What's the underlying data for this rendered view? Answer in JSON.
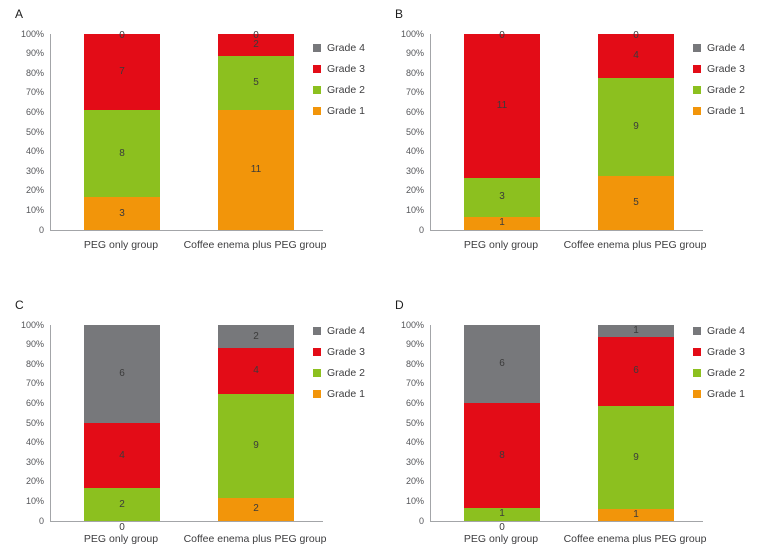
{
  "style": {
    "background": "#ffffff",
    "axis_color": "#a3a5a8",
    "tick_text_color": "#55565a",
    "value_text_color": "#3b3b3b",
    "grade_colors": {
      "Grade 1": "#f2950a",
      "Grade 2": "#8cc01f",
      "Grade 3": "#e30c17",
      "Grade 4": "#77787b"
    }
  },
  "legend": {
    "position": "right",
    "items": [
      "Grade 4",
      "Grade 3",
      "Grade 2",
      "Grade 1"
    ]
  },
  "y_axis": {
    "ticks": [
      "100%",
      "90%",
      "80%",
      "70%",
      "60%",
      "50%",
      "40%",
      "30%",
      "20%",
      "10%",
      "0"
    ]
  },
  "chart_data": [
    {
      "panel": "A",
      "type": "bar",
      "stacked": true,
      "normalized": "percent_of_total",
      "categories": [
        "PEG only group",
        "Coffee enema plus PEG group"
      ],
      "series": [
        {
          "name": "Grade 1",
          "color": "#f2950a",
          "values": [
            3,
            11
          ]
        },
        {
          "name": "Grade 2",
          "color": "#8cc01f",
          "values": [
            8,
            5
          ]
        },
        {
          "name": "Grade 3",
          "color": "#e30c17",
          "values": [
            7,
            2
          ]
        },
        {
          "name": "Grade 4",
          "color": "#77787b",
          "values": [
            0,
            0
          ]
        }
      ],
      "y_ticks": [
        "100%",
        "90%",
        "80%",
        "70%",
        "60%",
        "50%",
        "40%",
        "30%",
        "20%",
        "10%",
        "0"
      ],
      "ylim": [
        0,
        100
      ],
      "legend": [
        "Grade 4",
        "Grade 3",
        "Grade 2",
        "Grade 1"
      ],
      "legend_position": "right",
      "grid": false
    },
    {
      "panel": "B",
      "type": "bar",
      "stacked": true,
      "normalized": "percent_of_total",
      "categories": [
        "PEG only group",
        "Coffee enema plus PEG group"
      ],
      "series": [
        {
          "name": "Grade 1",
          "color": "#f2950a",
          "values": [
            1,
            5
          ]
        },
        {
          "name": "Grade 2",
          "color": "#8cc01f",
          "values": [
            3,
            9
          ]
        },
        {
          "name": "Grade 3",
          "color": "#e30c17",
          "values": [
            11,
            4
          ]
        },
        {
          "name": "Grade 4",
          "color": "#77787b",
          "values": [
            0,
            0
          ]
        }
      ],
      "y_ticks": [
        "100%",
        "90%",
        "80%",
        "70%",
        "60%",
        "50%",
        "40%",
        "30%",
        "20%",
        "10%",
        "0"
      ],
      "ylim": [
        0,
        100
      ],
      "legend": [
        "Grade 4",
        "Grade 3",
        "Grade 2",
        "Grade 1"
      ],
      "legend_position": "right",
      "grid": false
    },
    {
      "panel": "C",
      "type": "bar",
      "stacked": true,
      "normalized": "percent_of_total",
      "categories": [
        "PEG only group",
        "Coffee enema plus PEG group"
      ],
      "series": [
        {
          "name": "Grade 1",
          "color": "#f2950a",
          "values": [
            0,
            2
          ]
        },
        {
          "name": "Grade 2",
          "color": "#8cc01f",
          "values": [
            2,
            9
          ]
        },
        {
          "name": "Grade 3",
          "color": "#e30c17",
          "values": [
            4,
            4
          ]
        },
        {
          "name": "Grade 4",
          "color": "#77787b",
          "values": [
            6,
            2
          ]
        }
      ],
      "y_ticks": [
        "100%",
        "90%",
        "80%",
        "70%",
        "60%",
        "50%",
        "40%",
        "30%",
        "20%",
        "10%",
        "0"
      ],
      "ylim": [
        0,
        100
      ],
      "legend": [
        "Grade 4",
        "Grade 3",
        "Grade 2",
        "Grade 1"
      ],
      "legend_position": "right",
      "grid": false
    },
    {
      "panel": "D",
      "type": "bar",
      "stacked": true,
      "normalized": "percent_of_total",
      "categories": [
        "PEG only group",
        "Coffee enema plus PEG group"
      ],
      "series": [
        {
          "name": "Grade 1",
          "color": "#f2950a",
          "values": [
            0,
            1
          ]
        },
        {
          "name": "Grade 2",
          "color": "#8cc01f",
          "values": [
            1,
            9
          ]
        },
        {
          "name": "Grade 3",
          "color": "#e30c17",
          "values": [
            8,
            6
          ]
        },
        {
          "name": "Grade 4",
          "color": "#77787b",
          "values": [
            6,
            1
          ]
        }
      ],
      "y_ticks": [
        "100%",
        "90%",
        "80%",
        "70%",
        "60%",
        "50%",
        "40%",
        "30%",
        "20%",
        "10%",
        "0"
      ],
      "ylim": [
        0,
        100
      ],
      "legend": [
        "Grade 4",
        "Grade 3",
        "Grade 2",
        "Grade 1"
      ],
      "legend_position": "right",
      "grid": false
    }
  ]
}
